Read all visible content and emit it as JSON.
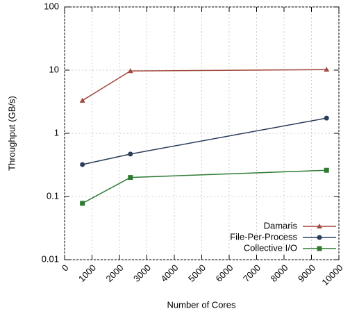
{
  "chart_data": {
    "type": "line",
    "x_label": "Number of Cores",
    "y_label": "Throughput (GB/s)",
    "x": [
      650,
      2400,
      9550
    ],
    "series": [
      {
        "name": "Damaris",
        "color": "#a2473b",
        "marker": "triangle",
        "values": [
          3.3,
          9.7,
          10.2
        ]
      },
      {
        "name": "File-Per-Process",
        "color": "#2b3d5b",
        "marker": "circle",
        "values": [
          0.32,
          0.47,
          1.74
        ]
      },
      {
        "name": "Collective I/O",
        "color": "#2f7a33",
        "marker": "square",
        "values": [
          0.078,
          0.2,
          0.26
        ]
      }
    ],
    "xlim": [
      0,
      10000
    ],
    "xticks": [
      0,
      1000,
      2000,
      3000,
      4000,
      5000,
      6000,
      7000,
      8000,
      9000,
      10000
    ],
    "ylim": [
      0.01,
      100
    ],
    "yticks": [
      0.01,
      0.1,
      1,
      10,
      100
    ],
    "yscale": "log",
    "grid": true,
    "legend": "lower right"
  }
}
